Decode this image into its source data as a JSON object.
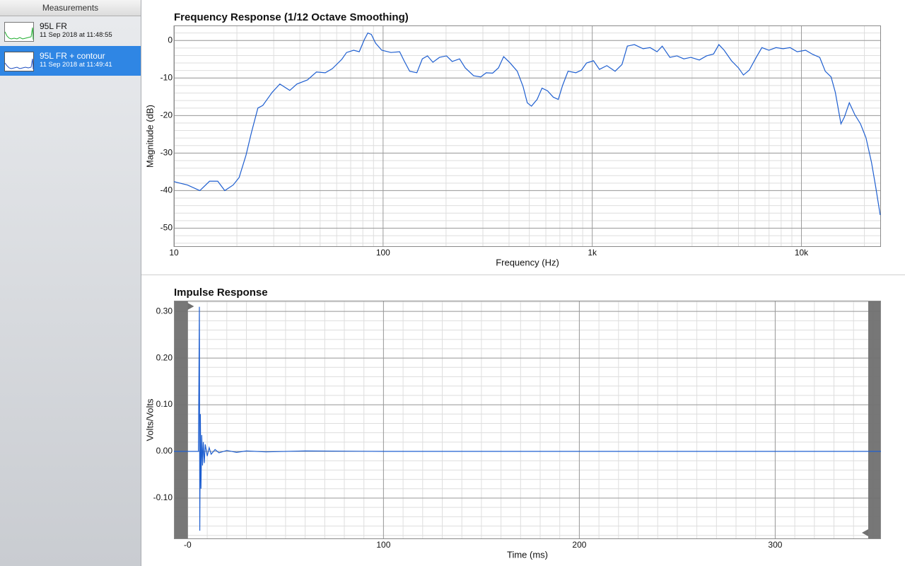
{
  "sidebar": {
    "title": "Measurements",
    "items": [
      {
        "name": "95L FR",
        "date": "11 Sep 2018 at 11:48:55"
      },
      {
        "name": "95L FR + contour",
        "date": "11 Sep 2018 at 11:49:41"
      }
    ]
  },
  "chart_data": [
    {
      "type": "line",
      "title": "Frequency Response (1/12 Octave Smoothing)",
      "x_label": "Frequency (Hz)",
      "y_label": "Magnitude (dB)",
      "log_x": true,
      "grid": true,
      "color": "#1f5fd0",
      "xlim": [
        10,
        24000
      ],
      "xticks": [
        10,
        100,
        {
          "value": 1000,
          "label": "1k"
        },
        {
          "value": 10000,
          "label": "10k"
        }
      ],
      "ylim": [
        -55,
        4
      ],
      "yticks": [
        -50,
        -40,
        -30,
        -20,
        -10,
        0
      ],
      "x": [
        10,
        11.6,
        13.3,
        14.8,
        16.2,
        17.5,
        19.2,
        20.5,
        22.1,
        23.5,
        25.2,
        26.6,
        29.5,
        32.1,
        35.8,
        38.7,
        43.5,
        48,
        52.9,
        57.2,
        63.5,
        66.9,
        72.3,
        76.9,
        81.3,
        84.5,
        87.9,
        92,
        98.5,
        109,
        120,
        126,
        134,
        145,
        154,
        163,
        173,
        186,
        201,
        214,
        232,
        247,
        271,
        293,
        311,
        334,
        356,
        377,
        405,
        438,
        467,
        489,
        512,
        545,
        575,
        611,
        651,
        688,
        721,
        766,
        835,
        888,
        939,
        1014,
        1082,
        1174,
        1286,
        1387,
        1471,
        1590,
        1750,
        1890,
        2040,
        2160,
        2350,
        2540,
        2740,
        2960,
        3250,
        3520,
        3800,
        4030,
        4270,
        4630,
        5000,
        5280,
        5630,
        6080,
        6470,
        6990,
        7560,
        8170,
        8830,
        9540,
        10470,
        11320,
        12230,
        13000,
        13860,
        14520,
        15450,
        16050,
        16940,
        18010,
        19150,
        20350,
        21630,
        22650,
        23800
      ],
      "values": [
        -37.6,
        -38.5,
        -40,
        -37.5,
        -37.5,
        -40,
        -38.5,
        -36.5,
        -30.6,
        -24.4,
        -18,
        -17.3,
        -13.8,
        -11.6,
        -13.3,
        -11.6,
        -10.5,
        -8.4,
        -8.6,
        -7.5,
        -5,
        -3.2,
        -2.6,
        -3,
        0.2,
        2,
        1.6,
        -0.7,
        -2.6,
        -3.2,
        -3,
        -5.4,
        -8.2,
        -8.6,
        -4.9,
        -4.1,
        -5.8,
        -4.5,
        -4.1,
        -5.6,
        -4.9,
        -7.3,
        -9.4,
        -9.7,
        -8.6,
        -8.7,
        -7.3,
        -4.3,
        -6,
        -8.2,
        -12.3,
        -16.6,
        -17.5,
        -15.7,
        -12.7,
        -13.4,
        -15.1,
        -15.7,
        -12,
        -8.2,
        -8.6,
        -7.9,
        -6,
        -5.4,
        -7.7,
        -6.7,
        -8.2,
        -6.4,
        -1.5,
        -1.1,
        -2.2,
        -1.9,
        -3,
        -1.5,
        -4.5,
        -4.1,
        -4.9,
        -4.5,
        -5.2,
        -4.1,
        -3.6,
        -1.1,
        -2.6,
        -5.4,
        -7.3,
        -9.2,
        -7.9,
        -4.5,
        -1.9,
        -2.6,
        -1.9,
        -2.2,
        -1.9,
        -3,
        -2.6,
        -3.7,
        -4.5,
        -8.2,
        -9.7,
        -13.8,
        -22.2,
        -20.4,
        -16.6,
        -19.8,
        -22.2,
        -25.9,
        -32.5,
        -39,
        -46.5
      ]
    },
    {
      "type": "line",
      "title": "Impulse Response",
      "x_label": "Time (ms)",
      "y_label": "Volts/Volts",
      "log_x": false,
      "grid": true,
      "color": "#1f5fd0",
      "xlim": [
        -7,
        354
      ],
      "xticks": [
        {
          "value": 0,
          "label": "-0"
        },
        100,
        200,
        300
      ],
      "ylim": [
        -0.188,
        0.323
      ],
      "yticks": [
        {
          "value": -0.1,
          "label": "-0.10"
        },
        {
          "value": 0,
          "label": "0.00"
        },
        {
          "value": 0.1,
          "label": "0.10"
        },
        {
          "value": 0.2,
          "label": "0.20"
        },
        {
          "value": 0.3,
          "label": "0.30"
        }
      ],
      "x": [
        -7,
        4,
        5.5,
        6,
        6.2,
        6.5,
        6.8,
        7.2,
        7.6,
        8,
        8.5,
        9,
        10,
        11,
        12,
        14,
        16,
        20,
        25,
        30,
        40,
        60,
        100,
        354
      ],
      "values": [
        0,
        0,
        0,
        0.31,
        -0.17,
        0.08,
        -0.08,
        0.035,
        -0.03,
        0.02,
        -0.025,
        0.015,
        -0.01,
        0.008,
        -0.006,
        0.004,
        -0.003,
        0.002,
        -0.002,
        0.001,
        -0.001,
        0.001,
        0,
        0
      ]
    }
  ]
}
